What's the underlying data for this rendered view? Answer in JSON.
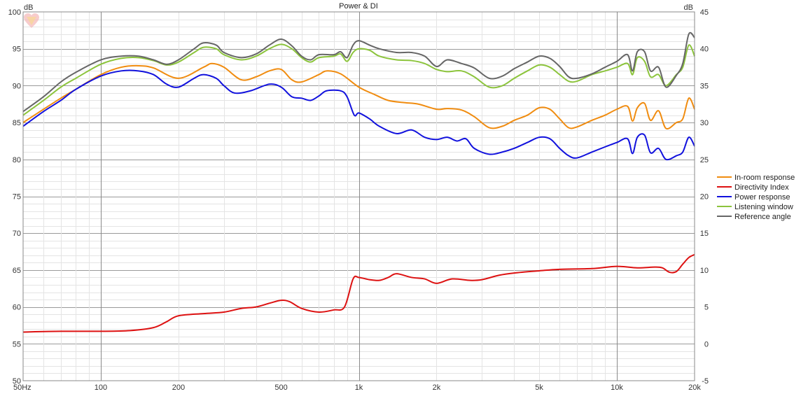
{
  "chart_data": {
    "type": "line",
    "title": "Power & DI",
    "left_axis": {
      "unit": "dB",
      "ylim": [
        50,
        100
      ],
      "ticks": [
        "50",
        "55",
        "60",
        "65",
        "70",
        "75",
        "80",
        "85",
        "90",
        "95",
        "100"
      ]
    },
    "right_axis": {
      "unit": "dB",
      "ylim": [
        -5,
        45
      ],
      "ticks": [
        "-5",
        "0",
        "5",
        "10",
        "15",
        "20",
        "25",
        "30",
        "35",
        "40",
        "45"
      ]
    },
    "x_axis": {
      "scale": "log",
      "xlim": [
        50,
        20000
      ],
      "major_ticks": [
        {
          "value": 50,
          "label": "50Hz"
        },
        {
          "value": 100,
          "label": "100"
        },
        {
          "value": 200,
          "label": "200"
        },
        {
          "value": 500,
          "label": "500"
        },
        {
          "value": 1000,
          "label": "1k"
        },
        {
          "value": 2000,
          "label": "2k"
        },
        {
          "value": 5000,
          "label": "5k"
        },
        {
          "value": 10000,
          "label": "10k"
        },
        {
          "value": 20000,
          "label": "20k"
        }
      ]
    },
    "grid": true,
    "legend_placement": "right",
    "series": [
      {
        "name": "In-room response",
        "axis": "left",
        "color": "#f08c10",
        "points": [
          [
            50,
            85
          ],
          [
            60,
            86.8
          ],
          [
            70,
            88.3
          ],
          [
            80,
            89.5
          ],
          [
            100,
            91.5
          ],
          [
            120,
            92.5
          ],
          [
            140,
            92.7
          ],
          [
            160,
            92.4
          ],
          [
            200,
            91.0
          ],
          [
            250,
            92.5
          ],
          [
            270,
            93.0
          ],
          [
            300,
            92.5
          ],
          [
            350,
            90.8
          ],
          [
            400,
            91.2
          ],
          [
            450,
            92.0
          ],
          [
            500,
            92.2
          ],
          [
            550,
            90.8
          ],
          [
            600,
            90.5
          ],
          [
            700,
            91.5
          ],
          [
            750,
            92.0
          ],
          [
            850,
            91.6
          ],
          [
            1000,
            89.8
          ],
          [
            1150,
            88.8
          ],
          [
            1300,
            88.0
          ],
          [
            1500,
            87.7
          ],
          [
            1700,
            87.5
          ],
          [
            2000,
            86.8
          ],
          [
            2200,
            86.9
          ],
          [
            2500,
            86.7
          ],
          [
            2800,
            85.8
          ],
          [
            3200,
            84.3
          ],
          [
            3600,
            84.5
          ],
          [
            4000,
            85.3
          ],
          [
            4500,
            86.0
          ],
          [
            5000,
            87.0
          ],
          [
            5500,
            86.8
          ],
          [
            6000,
            85.5
          ],
          [
            6500,
            84.3
          ],
          [
            7000,
            84.4
          ],
          [
            8000,
            85.3
          ],
          [
            9000,
            86.0
          ],
          [
            10000,
            86.8
          ],
          [
            11000,
            87.2
          ],
          [
            11500,
            85.2
          ],
          [
            12000,
            87.0
          ],
          [
            12800,
            87.6
          ],
          [
            13500,
            85.3
          ],
          [
            14500,
            86.6
          ],
          [
            15500,
            84.2
          ],
          [
            17000,
            85.0
          ],
          [
            18000,
            85.5
          ],
          [
            19000,
            88.3
          ],
          [
            20000,
            86.8
          ]
        ]
      },
      {
        "name": "Directivity Index",
        "axis": "right",
        "color": "#dd1111",
        "points": [
          [
            50,
            1.6
          ],
          [
            70,
            1.7
          ],
          [
            100,
            1.7
          ],
          [
            130,
            1.8
          ],
          [
            160,
            2.2
          ],
          [
            180,
            3.0
          ],
          [
            200,
            3.8
          ],
          [
            250,
            4.1
          ],
          [
            300,
            4.3
          ],
          [
            350,
            4.8
          ],
          [
            400,
            5.0
          ],
          [
            450,
            5.5
          ],
          [
            500,
            5.9
          ],
          [
            540,
            5.7
          ],
          [
            600,
            4.8
          ],
          [
            700,
            4.3
          ],
          [
            800,
            4.6
          ],
          [
            880,
            5.0
          ],
          [
            950,
            8.8
          ],
          [
            1000,
            9.0
          ],
          [
            1100,
            8.7
          ],
          [
            1200,
            8.6
          ],
          [
            1300,
            9.0
          ],
          [
            1400,
            9.5
          ],
          [
            1600,
            9.0
          ],
          [
            1800,
            8.8
          ],
          [
            2000,
            8.2
          ],
          [
            2300,
            8.8
          ],
          [
            2700,
            8.6
          ],
          [
            3000,
            8.7
          ],
          [
            3500,
            9.3
          ],
          [
            4000,
            9.6
          ],
          [
            5000,
            9.9
          ],
          [
            6000,
            10.1
          ],
          [
            8000,
            10.2
          ],
          [
            10000,
            10.5
          ],
          [
            12000,
            10.3
          ],
          [
            14000,
            10.4
          ],
          [
            15000,
            10.3
          ],
          [
            16000,
            9.7
          ],
          [
            17000,
            9.8
          ],
          [
            18000,
            10.8
          ],
          [
            19000,
            11.7
          ],
          [
            20000,
            12.1
          ]
        ]
      },
      {
        "name": "Power response",
        "axis": "left",
        "color": "#1111dd",
        "points": [
          [
            50,
            84.5
          ],
          [
            60,
            86.5
          ],
          [
            70,
            88.0
          ],
          [
            80,
            89.5
          ],
          [
            100,
            91.3
          ],
          [
            120,
            92.0
          ],
          [
            140,
            92.0
          ],
          [
            160,
            91.5
          ],
          [
            180,
            90.2
          ],
          [
            200,
            89.8
          ],
          [
            230,
            91.0
          ],
          [
            250,
            91.5
          ],
          [
            280,
            91.0
          ],
          [
            300,
            90.0
          ],
          [
            330,
            89.0
          ],
          [
            380,
            89.3
          ],
          [
            450,
            90.2
          ],
          [
            500,
            89.8
          ],
          [
            550,
            88.5
          ],
          [
            600,
            88.3
          ],
          [
            650,
            88.0
          ],
          [
            700,
            88.6
          ],
          [
            750,
            89.3
          ],
          [
            850,
            89.3
          ],
          [
            900,
            88.5
          ],
          [
            960,
            86.0
          ],
          [
            1000,
            86.3
          ],
          [
            1100,
            85.5
          ],
          [
            1200,
            84.5
          ],
          [
            1400,
            83.5
          ],
          [
            1600,
            84.0
          ],
          [
            1800,
            83.0
          ],
          [
            2000,
            82.7
          ],
          [
            2200,
            83.0
          ],
          [
            2400,
            82.5
          ],
          [
            2600,
            82.8
          ],
          [
            2800,
            81.5
          ],
          [
            3200,
            80.7
          ],
          [
            3600,
            81.0
          ],
          [
            4000,
            81.5
          ],
          [
            4500,
            82.3
          ],
          [
            5000,
            83.0
          ],
          [
            5500,
            82.8
          ],
          [
            6000,
            81.5
          ],
          [
            6500,
            80.5
          ],
          [
            7000,
            80.2
          ],
          [
            8000,
            81.0
          ],
          [
            9000,
            81.7
          ],
          [
            10000,
            82.3
          ],
          [
            11000,
            82.8
          ],
          [
            11500,
            80.8
          ],
          [
            12000,
            83.0
          ],
          [
            12800,
            83.3
          ],
          [
            13500,
            80.9
          ],
          [
            14500,
            81.5
          ],
          [
            15500,
            80.0
          ],
          [
            17000,
            80.5
          ],
          [
            18000,
            81.0
          ],
          [
            19000,
            83.0
          ],
          [
            20000,
            81.8
          ]
        ]
      },
      {
        "name": "Listening window",
        "axis": "left",
        "color": "#8cc43c",
        "points": [
          [
            50,
            86.0
          ],
          [
            60,
            88.0
          ],
          [
            70,
            89.8
          ],
          [
            80,
            91.0
          ],
          [
            100,
            92.9
          ],
          [
            120,
            93.7
          ],
          [
            140,
            93.8
          ],
          [
            160,
            93.4
          ],
          [
            180,
            92.8
          ],
          [
            200,
            93.2
          ],
          [
            230,
            94.5
          ],
          [
            250,
            95.2
          ],
          [
            280,
            95.0
          ],
          [
            300,
            94.2
          ],
          [
            350,
            93.5
          ],
          [
            400,
            94.0
          ],
          [
            450,
            95.0
          ],
          [
            500,
            95.6
          ],
          [
            550,
            95.0
          ],
          [
            600,
            93.8
          ],
          [
            650,
            93.2
          ],
          [
            700,
            93.8
          ],
          [
            800,
            94.0
          ],
          [
            850,
            94.3
          ],
          [
            900,
            93.3
          ],
          [
            950,
            94.5
          ],
          [
            1000,
            95.0
          ],
          [
            1100,
            94.8
          ],
          [
            1200,
            94.0
          ],
          [
            1400,
            93.5
          ],
          [
            1600,
            93.4
          ],
          [
            1800,
            93.0
          ],
          [
            2000,
            92.2
          ],
          [
            2200,
            91.9
          ],
          [
            2500,
            92.0
          ],
          [
            2800,
            91.2
          ],
          [
            3200,
            89.8
          ],
          [
            3600,
            90.0
          ],
          [
            4000,
            91.0
          ],
          [
            4500,
            92.0
          ],
          [
            5000,
            92.8
          ],
          [
            5500,
            92.5
          ],
          [
            6000,
            91.5
          ],
          [
            6500,
            90.6
          ],
          [
            7000,
            90.6
          ],
          [
            8000,
            91.5
          ],
          [
            9000,
            92.0
          ],
          [
            10000,
            92.5
          ],
          [
            11000,
            93.0
          ],
          [
            11500,
            91.5
          ],
          [
            12000,
            93.8
          ],
          [
            12800,
            93.3
          ],
          [
            13500,
            91.2
          ],
          [
            14500,
            91.5
          ],
          [
            15500,
            90.0
          ],
          [
            17000,
            91.5
          ],
          [
            18000,
            92.5
          ],
          [
            19000,
            95.5
          ],
          [
            20000,
            94.0
          ]
        ]
      },
      {
        "name": "Reference angle",
        "axis": "left",
        "color": "#666666",
        "points": [
          [
            50,
            86.5
          ],
          [
            60,
            88.5
          ],
          [
            70,
            90.5
          ],
          [
            80,
            91.8
          ],
          [
            100,
            93.5
          ],
          [
            120,
            94.0
          ],
          [
            140,
            94.0
          ],
          [
            160,
            93.5
          ],
          [
            180,
            92.9
          ],
          [
            200,
            93.5
          ],
          [
            230,
            95.0
          ],
          [
            250,
            95.8
          ],
          [
            280,
            95.5
          ],
          [
            300,
            94.5
          ],
          [
            350,
            93.8
          ],
          [
            400,
            94.3
          ],
          [
            450,
            95.5
          ],
          [
            500,
            96.3
          ],
          [
            550,
            95.4
          ],
          [
            600,
            94.0
          ],
          [
            650,
            93.5
          ],
          [
            700,
            94.2
          ],
          [
            800,
            94.2
          ],
          [
            850,
            94.6
          ],
          [
            900,
            93.8
          ],
          [
            950,
            95.5
          ],
          [
            1000,
            96.1
          ],
          [
            1100,
            95.5
          ],
          [
            1200,
            95.0
          ],
          [
            1400,
            94.5
          ],
          [
            1600,
            94.5
          ],
          [
            1800,
            94.0
          ],
          [
            2000,
            92.6
          ],
          [
            2200,
            93.5
          ],
          [
            2500,
            93.0
          ],
          [
            2800,
            92.4
          ],
          [
            3200,
            91.0
          ],
          [
            3600,
            91.3
          ],
          [
            4000,
            92.3
          ],
          [
            4500,
            93.2
          ],
          [
            5000,
            94.0
          ],
          [
            5500,
            93.7
          ],
          [
            6000,
            92.6
          ],
          [
            6500,
            91.2
          ],
          [
            7000,
            91.0
          ],
          [
            8000,
            91.6
          ],
          [
            9000,
            92.5
          ],
          [
            10000,
            93.3
          ],
          [
            11000,
            94.2
          ],
          [
            11500,
            92.0
          ],
          [
            12000,
            94.6
          ],
          [
            12800,
            94.6
          ],
          [
            13500,
            92.0
          ],
          [
            14500,
            92.5
          ],
          [
            15500,
            89.8
          ],
          [
            17000,
            91.4
          ],
          [
            18000,
            93.0
          ],
          [
            19000,
            97.0
          ],
          [
            20000,
            96.5
          ]
        ]
      }
    ]
  },
  "logo": {
    "icon": "heart-logo-icon"
  }
}
